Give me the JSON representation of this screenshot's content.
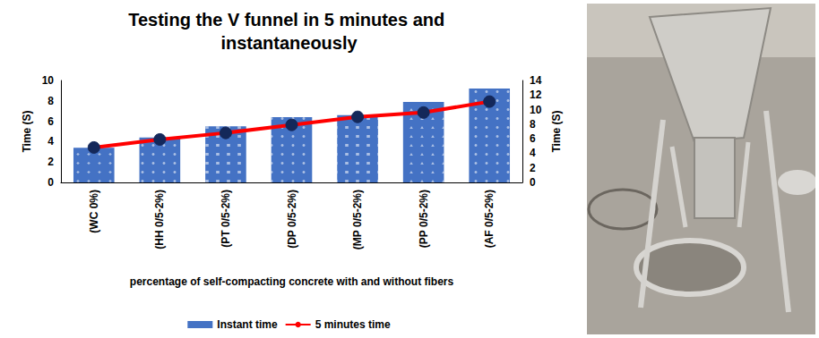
{
  "chart_data": {
    "type": "bar",
    "title": "Testing the V funnel in 5 minutes and instantaneously",
    "x_label": "percentage of self-compacting concrete with and without fibers",
    "y_label": "Time (S)",
    "y2_label": "Time (S)",
    "categories": [
      "(WC 0%)",
      "(HH 0/5-2%)",
      "(PT 0/5-2%)",
      "(DP 0/5-2%)",
      "(MP 0/5-2%)",
      "(PP 0/5-2%)",
      "(AF 0/5-2%)"
    ],
    "series": [
      {
        "name": "Instant time",
        "type": "bar",
        "color": "#4472c4",
        "values": [
          3.4,
          4.4,
          5.5,
          6.4,
          6.6,
          7.9,
          9.2
        ]
      },
      {
        "name": "5 minutes time",
        "type": "line",
        "color": "#ff0000",
        "marker": "circle",
        "axis": "y2",
        "values": [
          4.8,
          5.9,
          6.8,
          7.9,
          9.0,
          9.6,
          11.1
        ]
      }
    ],
    "ylim": [
      0,
      10
    ],
    "yticks": [
      0,
      2,
      4,
      6,
      8,
      10
    ],
    "y2lim": [
      0,
      14
    ],
    "y2ticks": [
      0,
      2,
      4,
      6,
      8,
      10,
      12,
      14
    ],
    "legend": "bottom",
    "grid": false
  }
}
